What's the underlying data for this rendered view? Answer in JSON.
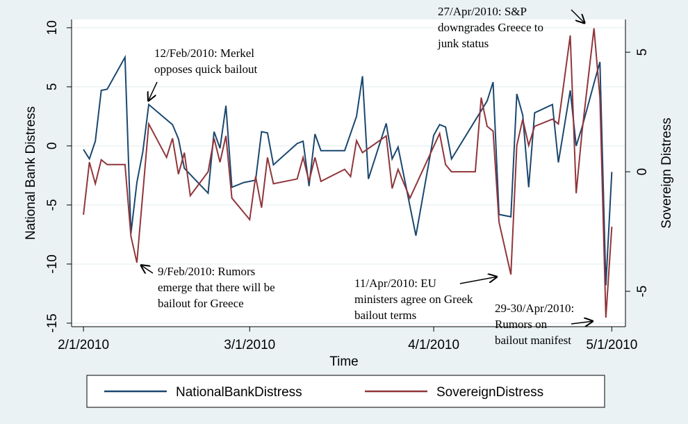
{
  "chart_data": {
    "type": "line",
    "xlabel": "Time",
    "ylabel": "National Bank Distress",
    "y2label": "Sovereign Distress",
    "xlim": [
      -2,
      91.3
    ],
    "xticks": [
      {
        "value": 0,
        "label": "2/1/2010"
      },
      {
        "value": 28,
        "label": "3/1/2010"
      },
      {
        "value": 59,
        "label": "4/1/2010"
      },
      {
        "value": 89,
        "label": "5/1/2010"
      }
    ],
    "ylim": [
      -15.3,
      10.7
    ],
    "yticks": [
      -15,
      -10,
      -5,
      0,
      5,
      10
    ],
    "y2lim": [
      -6.48,
      6.37
    ],
    "y2ticks": [
      -5,
      0,
      5
    ],
    "grid": true,
    "legend": "bottom",
    "series": [
      {
        "name": "NationalBankDistress",
        "color": "#1a476f",
        "x": [
          0,
          1,
          2,
          3,
          4,
          7,
          8,
          9,
          10,
          11,
          15,
          16,
          17,
          21,
          22,
          23,
          24,
          25,
          27,
          29,
          30,
          31,
          32,
          36,
          37,
          38,
          39,
          40,
          44,
          46,
          47,
          48,
          51,
          52,
          53,
          56,
          59,
          60,
          61,
          62,
          68,
          69,
          70,
          72,
          73,
          74,
          75,
          76,
          79,
          80,
          82,
          83,
          84,
          86,
          87,
          88,
          89
        ],
        "values": [
          -0.3,
          -1.1,
          0.4,
          4.7,
          4.8,
          7.5,
          -7.4,
          -3.1,
          -0.5,
          3.5,
          1.8,
          0.6,
          -1.9,
          -4.0,
          1.2,
          -0.2,
          3.4,
          -3.5,
          -3.1,
          -2.9,
          1.2,
          1.1,
          -1.6,
          0.2,
          0.4,
          -3.4,
          1.0,
          -0.4,
          -0.4,
          2.5,
          5.9,
          -2.8,
          1.9,
          -1.1,
          -0.1,
          -7.6,
          0.9,
          1.8,
          1.6,
          -1.1,
          3.8,
          5.4,
          -5.8,
          -6.0,
          4.4,
          2.6,
          -3.5,
          2.8,
          3.5,
          -1.4,
          4.7,
          0,
          1.6,
          5.3,
          7.1,
          -11.8,
          -2.2
        ]
      },
      {
        "name": "SovereignDistress",
        "color": "#90353b",
        "axis": "y2",
        "x": [
          0,
          1,
          2,
          3,
          4,
          7,
          8,
          9,
          11,
          14,
          15,
          16,
          17,
          18,
          21,
          22,
          23,
          24,
          25,
          28,
          29,
          30,
          31,
          32,
          36,
          37,
          38,
          39,
          40,
          44,
          45,
          46,
          47,
          51,
          52,
          53,
          55,
          60,
          61,
          62,
          66,
          67,
          68,
          69,
          70,
          72,
          73,
          74,
          75,
          76,
          79,
          80,
          82,
          83,
          84,
          86,
          87,
          88,
          89
        ],
        "values": [
          -1.8,
          0.4,
          -0.5,
          0.5,
          0.3,
          0.3,
          -2.7,
          -3.8,
          2.0,
          0.6,
          1.4,
          -0.1,
          0.8,
          -1.0,
          0.0,
          1.4,
          0.4,
          1.5,
          -1.1,
          -2.0,
          -0.2,
          -1.5,
          0.6,
          -0.5,
          -0.3,
          0.6,
          -0.4,
          0.6,
          -0.4,
          0.1,
          -0.2,
          1.3,
          0.8,
          1.5,
          -0.7,
          0.1,
          -1.1,
          1.6,
          0.3,
          0.0,
          0.0,
          3.1,
          1.9,
          1.7,
          -2.1,
          -4.3,
          1.1,
          2.2,
          1.1,
          1.9,
          2.2,
          2.0,
          5.7,
          -0.9,
          1.7,
          6.0,
          3.1,
          -6.1,
          -2.3
        ]
      }
    ],
    "annotations": [
      {
        "lines": [
          "12/Feb/2010:  Merkel",
          "opposes quick bailout"
        ]
      },
      {
        "lines": [
          "9/Feb/2010:  Rumors",
          "emerge that there will be",
          "bailout for Greece"
        ]
      },
      {
        "lines": [
          "11/Apr/2010:  EU",
          "ministers agree on Greek",
          "bailout terms"
        ]
      },
      {
        "lines": [
          "27/Apr/2010:  S&P",
          "downgrades Greece to",
          "junk status"
        ]
      },
      {
        "lines": [
          "29-30/Apr/2010:",
          "Rumors on",
          "bailout manifest"
        ]
      }
    ]
  }
}
